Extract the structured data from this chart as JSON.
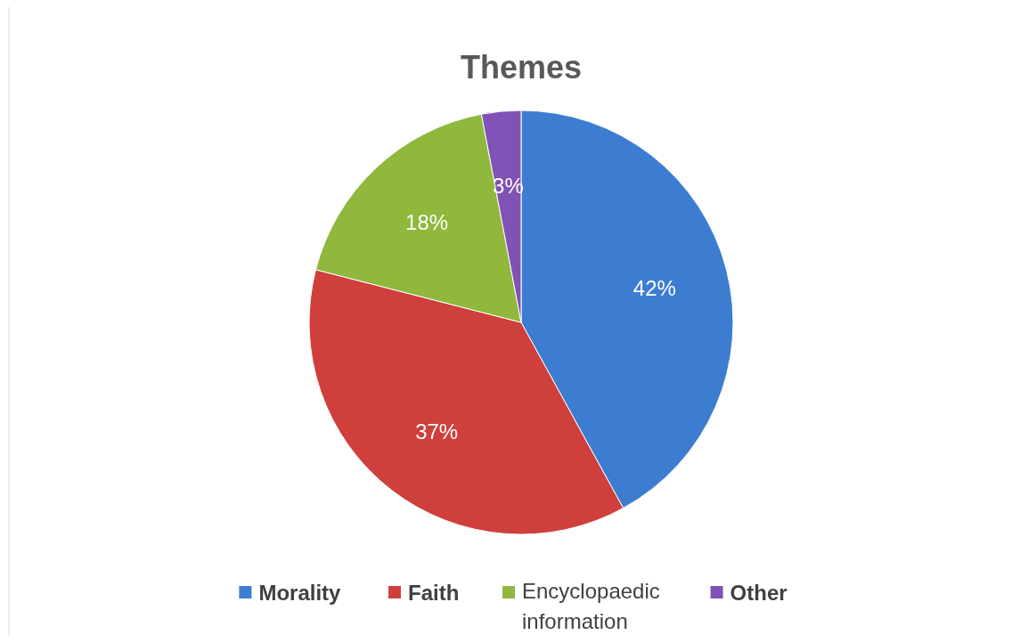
{
  "chart_data": {
    "type": "pie",
    "title": "Themes",
    "categories": [
      "Morality",
      "Faith",
      "Encyclopaedic information",
      "Other"
    ],
    "values": [
      42,
      37,
      18,
      3
    ],
    "value_labels": [
      "42%",
      "37%",
      "18%",
      "3%"
    ],
    "colors": [
      "#3d7dd1",
      "#cf3f3c",
      "#8fb83c",
      "#8152b5"
    ],
    "legend": "bottom"
  }
}
